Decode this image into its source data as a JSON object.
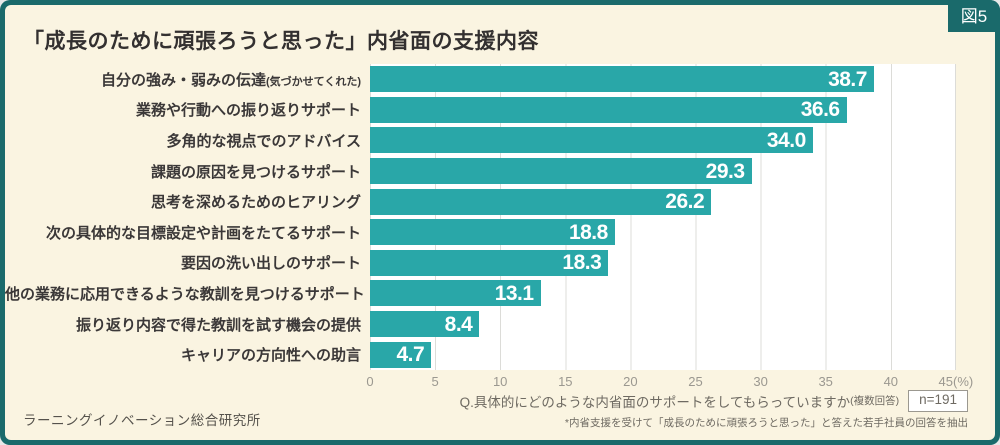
{
  "figure_badge": "図5",
  "title": "「成長のために頑張ろうと思った」内省面の支援内容",
  "chart_data": {
    "type": "bar",
    "orientation": "horizontal",
    "title": "「成長のために頑張ろうと思った」内省面の支援内容",
    "categories": [
      "自分の強み・弱みの伝達",
      "業務や行動への振り返りサポート",
      "多角的な視点でのアドバイス",
      "課題の原因を見つけるサポート",
      "思考を深めるためのヒアリング",
      "次の具体的な目標設定や計画をたてるサポート",
      "要因の洗い出しのサポート",
      "他の業務に応用できるような教訓を見つけるサポート",
      "振り返り内容で得た教訓を試す機会の提供",
      "キャリアの方向性への助言"
    ],
    "category_notes": [
      "(気づかせてくれた)",
      "",
      "",
      "",
      "",
      "",
      "",
      "",
      "",
      ""
    ],
    "values": [
      38.7,
      36.6,
      34.0,
      29.3,
      26.2,
      18.8,
      18.3,
      13.1,
      8.4,
      4.7
    ],
    "value_labels": [
      "38.7",
      "36.6",
      "34.0",
      "29.3",
      "26.2",
      "18.8",
      "18.3",
      "13.1",
      "8.4",
      "4.7"
    ],
    "xlim": [
      0,
      45
    ],
    "x_tick_labels": [
      "0",
      "5",
      "10",
      "15",
      "20",
      "25",
      "30",
      "35",
      "40",
      "45(%)"
    ],
    "xlabel": "",
    "ylabel": "",
    "grid": true,
    "legend_position": "none",
    "bar_color": "#29A7A8",
    "value_label_color": "#FFFFFF"
  },
  "annotation": {
    "question": "Q.具体的にどのような内省面のサポートをしてもらっていますか",
    "question_note": "(複数回答)",
    "sample_size": "n=191",
    "footnote": "*内省支援を受けて「成長のために頑張ろうと思った」と答えた若手社員の回答を抽出"
  },
  "source": "ラーニングイノベーション総合研究所",
  "colors": {
    "frame": "#1A6A6B",
    "background": "#FAF4E1",
    "plot_background": "#FFFFFF",
    "gridline": "#DCDCD8",
    "bar": "#29A7A8"
  }
}
